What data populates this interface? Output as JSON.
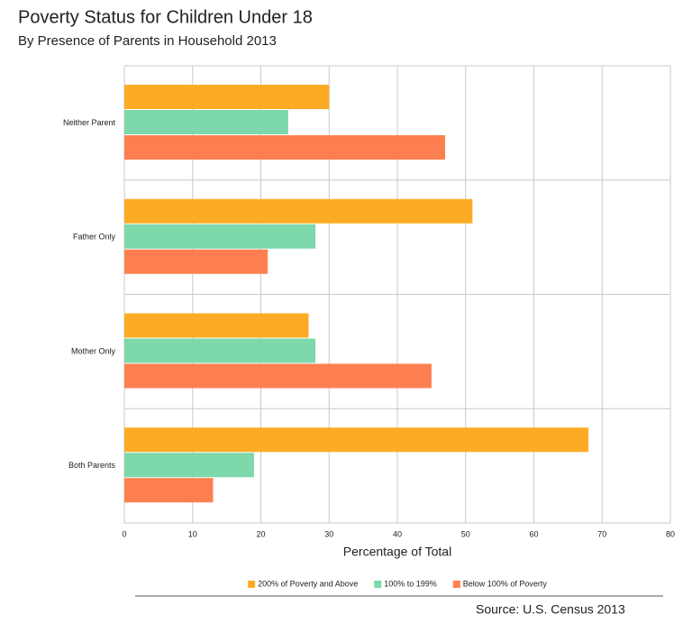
{
  "chart_data": {
    "type": "hbar",
    "title": "Poverty Status for Children Under 18",
    "subtitle": "By Presence of Parents in Household 2013",
    "x_label": "Percentage of Total",
    "source": "Source: U.S. Census 2013",
    "categories": [
      "Neither Parent",
      "Father Only",
      "Mother Only",
      "Both Parents"
    ],
    "series": [
      {
        "name": "200% of Poverty and Above",
        "color": "#fdab24",
        "values": [
          30,
          51,
          27,
          68
        ]
      },
      {
        "name": "100% to 199%",
        "color": "#7dd8ac",
        "values": [
          24,
          28,
          28,
          19
        ]
      },
      {
        "name": "Below 100% of Poverty",
        "color": "#fd7f4f",
        "values": [
          47,
          21,
          45,
          13
        ]
      }
    ],
    "xlim": [
      0,
      80
    ],
    "xticks": [
      0,
      10,
      20,
      30,
      40,
      50,
      60,
      70,
      80
    ],
    "grid": true,
    "legend": "bottom"
  }
}
